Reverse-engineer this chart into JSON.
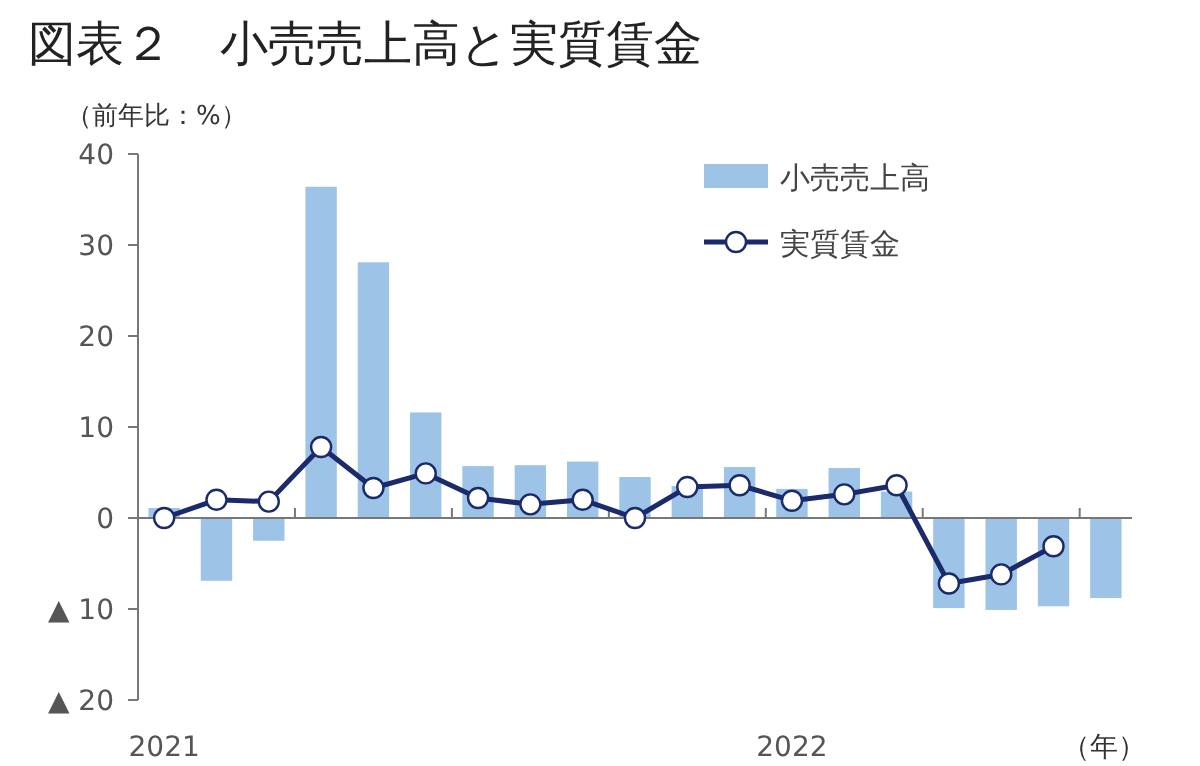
{
  "chart_data": {
    "type": "bar",
    "title": "図表２　小売売上高と実質賃金",
    "ylabel": "（前年比：%）",
    "xlabel": "（年）",
    "categories": [
      "2021",
      null,
      null,
      null,
      null,
      null,
      null,
      null,
      null,
      null,
      null,
      null,
      "2022",
      null,
      null,
      null,
      null,
      null,
      null
    ],
    "series": [
      {
        "name": "小売売上高",
        "color": "#9dc3e6",
        "values": [
          1.1,
          -6.9,
          -2.5,
          36.4,
          28.1,
          11.6,
          5.7,
          5.8,
          6.2,
          4.5,
          3.5,
          5.6,
          3.2,
          5.5,
          2.9,
          -9.9,
          -10.1,
          -9.7,
          -8.8
        ]
      },
      {
        "name": "実質賃金",
        "type": "line",
        "color": "#1b2a6b",
        "marker": "circle",
        "values": [
          0,
          2.0,
          1.8,
          7.8,
          3.3,
          4.9,
          2.2,
          1.5,
          2.0,
          0,
          3.4,
          3.6,
          1.9,
          2.6,
          3.6,
          -7.2,
          -6.2,
          -3.1,
          null
        ]
      }
    ],
    "ylim": [
      -20,
      40
    ],
    "yticks": [
      {
        "value": -20,
        "label": "▲ 20"
      },
      {
        "value": -10,
        "label": "▲ 10"
      },
      0,
      10,
      20,
      30,
      40
    ],
    "legend": "top right"
  }
}
